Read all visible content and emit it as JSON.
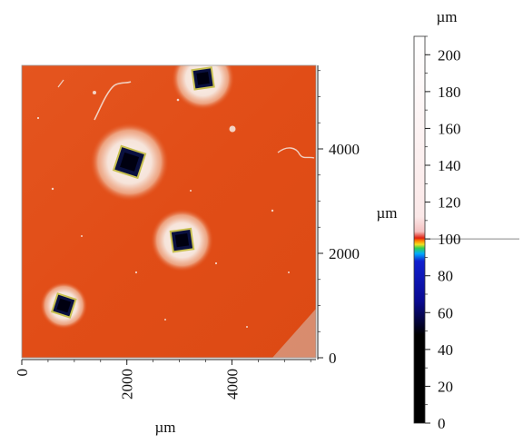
{
  "scan_map": {
    "x_axis": {
      "unit_label": "µm",
      "ticks": [
        {
          "v": 0,
          "label": "0"
        },
        {
          "v": 2000,
          "label": "2000"
        },
        {
          "v": 4000,
          "label": "4000"
        }
      ],
      "range": [
        0,
        5600
      ]
    },
    "y_axis": {
      "unit_label": "µm",
      "ticks": [
        {
          "v": 0,
          "label": "0"
        },
        {
          "v": 2000,
          "label": "2000"
        },
        {
          "v": 4000,
          "label": "4000"
        }
      ],
      "range": [
        0,
        5600
      ]
    },
    "pits": [
      {
        "x": 800,
        "y": 1000,
        "halo_um": 450,
        "size_um": 360
      },
      {
        "x": 3050,
        "y": 2250,
        "halo_um": 600,
        "size_um": 390
      },
      {
        "x": 2050,
        "y": 3750,
        "halo_um": 750,
        "size_um": 480
      },
      {
        "x": 3450,
        "y": 5350,
        "halo_um": 600,
        "size_um": 370
      }
    ],
    "colors": {
      "substrate": "#e2521c",
      "halo": "#f6e9e2",
      "pit": "#0a1040",
      "pit_rim": "#c8c050"
    }
  },
  "height_scale": {
    "unit_label": "µm",
    "range": [
      0,
      210
    ],
    "ticks": [
      {
        "v": 0,
        "label": "0"
      },
      {
        "v": 20,
        "label": "20"
      },
      {
        "v": 40,
        "label": "40"
      },
      {
        "v": 60,
        "label": "60"
      },
      {
        "v": 80,
        "label": "80"
      },
      {
        "v": 100,
        "label": "100"
      },
      {
        "v": 120,
        "label": "120"
      },
      {
        "v": 140,
        "label": "140"
      },
      {
        "v": 160,
        "label": "160"
      },
      {
        "v": 180,
        "label": "180"
      },
      {
        "v": 200,
        "label": "200"
      }
    ],
    "colormap": [
      {
        "v": 0,
        "color": "#000000"
      },
      {
        "v": 48,
        "color": "#000000"
      },
      {
        "v": 66,
        "color": "#0a0a90"
      },
      {
        "v": 88,
        "color": "#1020d0"
      },
      {
        "v": 92,
        "color": "#00aaff"
      },
      {
        "v": 95,
        "color": "#30d050"
      },
      {
        "v": 97,
        "color": "#f0e020"
      },
      {
        "v": 99,
        "color": "#ff8000"
      },
      {
        "v": 100.5,
        "color": "#e02010"
      },
      {
        "v": 104,
        "color": "#f5c0c0"
      },
      {
        "v": 112,
        "color": "#fbe8e8"
      },
      {
        "v": 210,
        "color": "#ffffff"
      }
    ],
    "marker_value": 100
  }
}
